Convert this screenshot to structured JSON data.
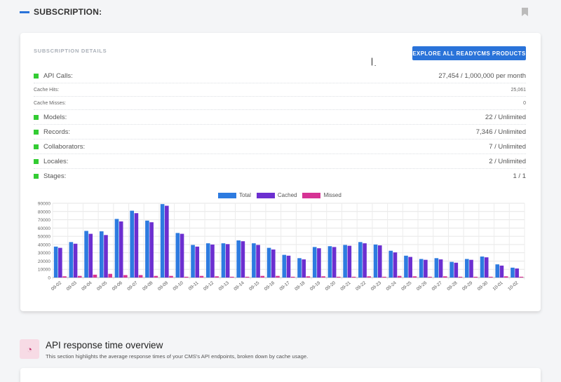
{
  "header": {
    "title": "SUBSCRIPTION:",
    "bookmark_icon": "bookmark-icon"
  },
  "card": {
    "title": "SUBSCRIPTION DETAILS",
    "explore_label": "EXPLORE ALL READYCMS PRODUCTS",
    "rows": [
      {
        "label": "API Calls:",
        "value": "27,454 / 1,000,000 per month"
      },
      {
        "label": "Cache Hits:",
        "value": "25,061"
      },
      {
        "label": "Cache Misses:",
        "value": "0"
      },
      {
        "label": "Models:",
        "value": "22 / Unlimited"
      },
      {
        "label": "Records:",
        "value": "7,346 / Unlimited"
      },
      {
        "label": "Collaborators:",
        "value": "7 / Unlimited"
      },
      {
        "label": "Locales:",
        "value": "2 / Unlimited"
      },
      {
        "label": "Stages:",
        "value": "1 / 1"
      }
    ]
  },
  "colors": {
    "total": "#2d7be0",
    "cached": "#6c2fd0",
    "missed": "#d63394",
    "accent": "#2a73d9",
    "bullet": "#33cc33"
  },
  "chart_data": {
    "type": "bar",
    "categories": [
      "09-02",
      "09-03",
      "09-04",
      "09-05",
      "09-06",
      "09-07",
      "09-08",
      "09-09",
      "09-10",
      "09-11",
      "09-12",
      "09-13",
      "09-14",
      "09-15",
      "09-16",
      "09-17",
      "09-18",
      "09-19",
      "09-20",
      "09-21",
      "09-22",
      "09-23",
      "09-24",
      "09-25",
      "09-26",
      "09-27",
      "09-28",
      "09-29",
      "09-30",
      "10-01",
      "10-02"
    ],
    "series": [
      {
        "name": "Total",
        "values": [
          37500,
          43000,
          56500,
          56000,
          71000,
          81000,
          69000,
          89000,
          54000,
          39500,
          41500,
          41500,
          45000,
          41500,
          36000,
          27500,
          23500,
          37000,
          38000,
          39500,
          43000,
          40000,
          32500,
          26500,
          22500,
          23500,
          19000,
          22500,
          25500,
          16000,
          12000
        ]
      },
      {
        "name": "Cached",
        "values": [
          36000,
          41000,
          53000,
          51500,
          68000,
          78000,
          67000,
          87000,
          53000,
          37500,
          40000,
          40500,
          44000,
          39500,
          34000,
          26500,
          22000,
          35500,
          37000,
          38500,
          41500,
          39000,
          30500,
          25000,
          21500,
          22000,
          18000,
          21500,
          24500,
          14500,
          11000
        ]
      },
      {
        "name": "Missed",
        "values": [
          1500,
          2000,
          3500,
          4500,
          3000,
          3000,
          2000,
          2000,
          1000,
          2000,
          1500,
          1000,
          1000,
          2000,
          2000,
          1000,
          1500,
          1500,
          1000,
          1000,
          1500,
          1000,
          2000,
          1500,
          1000,
          1500,
          1000,
          1000,
          1000,
          1500,
          1000
        ]
      }
    ],
    "yticks": [
      "0",
      "10000",
      "20000",
      "30000",
      "40000",
      "50000",
      "60000",
      "70000",
      "80000",
      "90000"
    ],
    "ylim": [
      0,
      90000
    ],
    "grid": true,
    "legend": "top"
  },
  "api_section": {
    "title": "API response time overview",
    "description": "This section highlights the average response times of your CMS's API endpoints, broken down by cache usage.",
    "icon": "gauge-icon"
  }
}
